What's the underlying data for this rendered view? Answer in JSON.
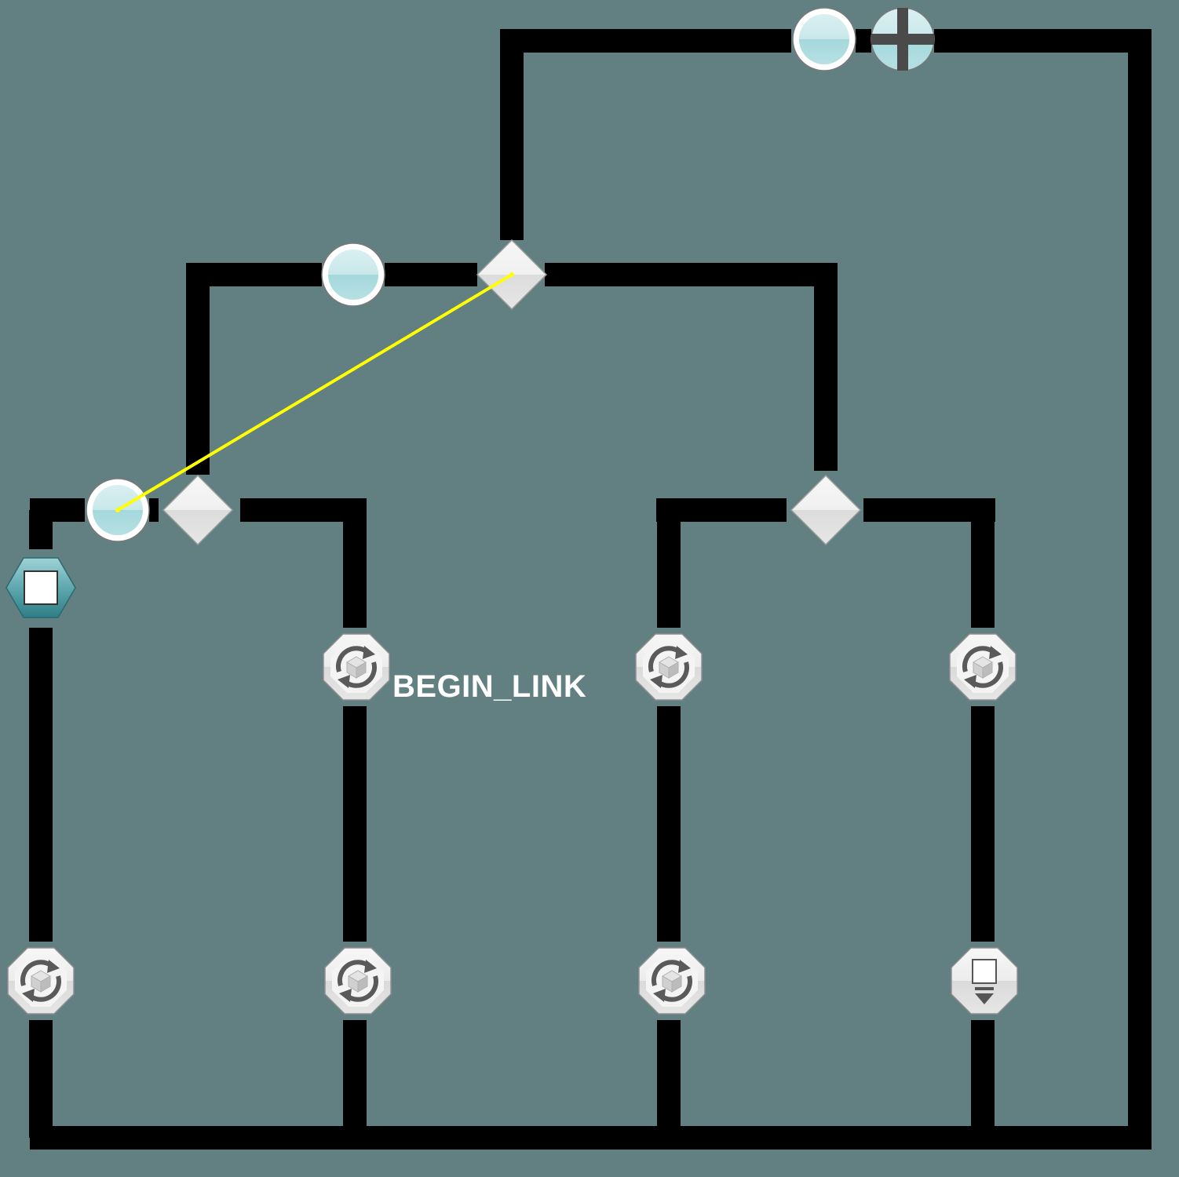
{
  "canvas": {
    "background": "#627f82",
    "wire_color": "#000000",
    "link_color": "#ffff00"
  },
  "link_label": "BEGIN_LINK",
  "nodes": [
    {
      "id": "xor-gateway-top",
      "type": "gateway",
      "icon": "diamond-icon"
    },
    {
      "id": "xor-gateway-left",
      "type": "gateway",
      "icon": "diamond-icon"
    },
    {
      "id": "xor-gateway-right",
      "type": "gateway",
      "icon": "diamond-icon"
    },
    {
      "id": "start-event-top",
      "type": "event",
      "icon": "circle-event-icon"
    },
    {
      "id": "parallel-join-top",
      "type": "gateway",
      "icon": "plus-cross-icon"
    },
    {
      "id": "start-event-mid",
      "type": "event",
      "icon": "circle-event-icon"
    },
    {
      "id": "start-event-left",
      "type": "event",
      "icon": "circle-event-icon"
    },
    {
      "id": "stop-node",
      "type": "stop",
      "icon": "stop-square-icon"
    },
    {
      "id": "loop-task-1",
      "type": "task",
      "icon": "loop-cube-icon"
    },
    {
      "id": "loop-task-2",
      "type": "task",
      "icon": "loop-cube-icon"
    },
    {
      "id": "loop-task-3",
      "type": "task",
      "icon": "loop-cube-icon"
    },
    {
      "id": "loop-task-4",
      "type": "task",
      "icon": "loop-cube-icon"
    },
    {
      "id": "loop-task-5",
      "type": "task",
      "icon": "loop-cube-icon"
    },
    {
      "id": "loop-task-6",
      "type": "task",
      "icon": "loop-cube-icon"
    },
    {
      "id": "loop-task-7",
      "type": "task",
      "icon": "loop-cube-icon"
    },
    {
      "id": "download-task",
      "type": "task",
      "icon": "download-icon"
    }
  ]
}
